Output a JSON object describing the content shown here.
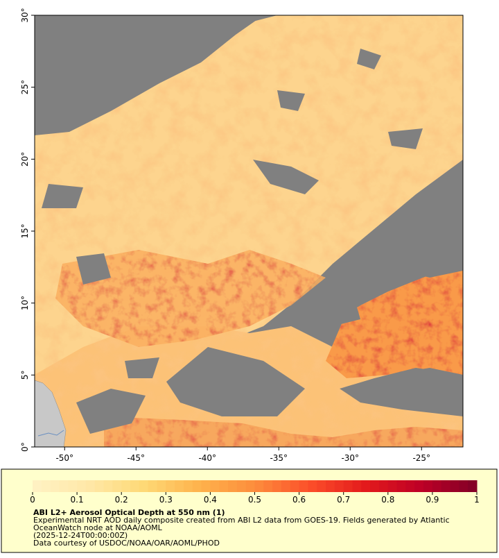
{
  "chart_data": {
    "type": "map",
    "xlim": [
      -52.1,
      -22.1
    ],
    "ylim": [
      0,
      30
    ],
    "xticks": [
      {
        "value": -50,
        "label": "-50°"
      },
      {
        "value": -45,
        "label": "-45°"
      },
      {
        "value": -40,
        "label": "-40°"
      },
      {
        "value": -35,
        "label": "-35°"
      },
      {
        "value": -30,
        "label": "-30°"
      },
      {
        "value": -25,
        "label": "-25°"
      }
    ],
    "yticks": [
      {
        "value": 0,
        "label": "0°"
      },
      {
        "value": 5,
        "label": "5°"
      },
      {
        "value": 10,
        "label": "10°"
      },
      {
        "value": 15,
        "label": "15°"
      },
      {
        "value": 20,
        "label": "20°"
      },
      {
        "value": 25,
        "label": "25°"
      },
      {
        "value": 30,
        "label": "30°"
      }
    ],
    "colorbar": {
      "lim": [
        0,
        1
      ],
      "ticks": [
        0,
        0.1,
        0.2,
        0.3,
        0.4,
        0.5,
        0.6,
        0.7,
        0.8,
        0.9,
        1
      ],
      "colors": [
        "#fff2c4",
        "#ffe8a8",
        "#fed976",
        "#feb24c",
        "#fd8d3c",
        "#fc4e2a",
        "#e31a1c",
        "#bd0026",
        "#800026"
      ]
    },
    "title": "ABI L2+ Aerosol Optical Depth at 550 nm (1)",
    "notes": [
      "Experimental NRT AOD daily composite created from ABI L2 data from GOES-19. Fields generated by Atlantic",
      "OceanWatch node at NOAA/AOML",
      "(2025-12-24T00:00:00Z)",
      "Data courtesy of USDOC/NOAA/OAR/AOML/PHOD"
    ]
  }
}
